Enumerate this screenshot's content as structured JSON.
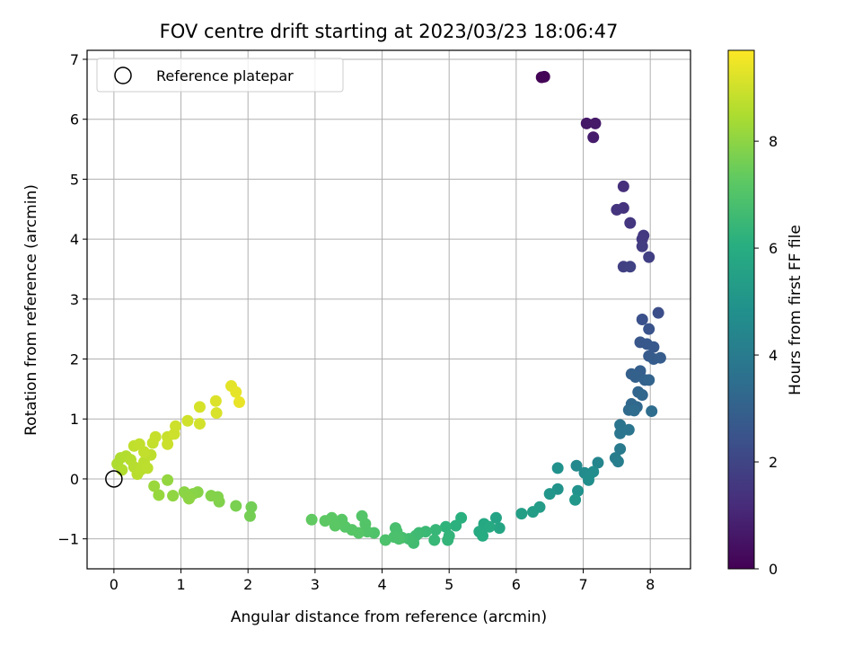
{
  "chart_data": {
    "type": "scatter",
    "title": "FOV centre drift starting at 2023/03/23 18:06:47",
    "xlabel": "Angular distance from reference (arcmin)",
    "ylabel": "Rotation from reference (arcmin)",
    "xlim": [
      -0.4,
      8.6
    ],
    "ylim": [
      -1.5,
      7.15
    ],
    "xticks": [
      0,
      1,
      2,
      3,
      4,
      5,
      6,
      7,
      8
    ],
    "yticks": [
      -1,
      0,
      1,
      2,
      3,
      4,
      5,
      6,
      7
    ],
    "grid": true,
    "colormap": "viridis",
    "legend": {
      "label": "Reference platepar",
      "placement": "top-left"
    },
    "reference_point": {
      "x": 0,
      "y": 0
    },
    "colorbar": {
      "label": "Hours from first FF file",
      "min": 0,
      "max": 9.7,
      "ticks": [
        0,
        2,
        4,
        6,
        8
      ]
    },
    "points": [
      {
        "x": 6.38,
        "y": 6.7,
        "c": 0.05
      },
      {
        "x": 6.42,
        "y": 6.71,
        "c": 0.1
      },
      {
        "x": 7.05,
        "y": 5.93,
        "c": 0.6
      },
      {
        "x": 7.18,
        "y": 5.93,
        "c": 0.65
      },
      {
        "x": 7.15,
        "y": 5.7,
        "c": 0.75
      },
      {
        "x": 7.6,
        "y": 4.88,
        "c": 1.3
      },
      {
        "x": 7.6,
        "y": 4.52,
        "c": 1.4
      },
      {
        "x": 7.5,
        "y": 4.49,
        "c": 1.45
      },
      {
        "x": 7.7,
        "y": 4.27,
        "c": 1.5
      },
      {
        "x": 7.9,
        "y": 4.06,
        "c": 1.6
      },
      {
        "x": 7.88,
        "y": 4.0,
        "c": 1.65
      },
      {
        "x": 7.88,
        "y": 3.88,
        "c": 1.7
      },
      {
        "x": 7.98,
        "y": 3.7,
        "c": 1.8
      },
      {
        "x": 7.6,
        "y": 3.54,
        "c": 1.85
      },
      {
        "x": 7.7,
        "y": 3.54,
        "c": 1.9
      },
      {
        "x": 8.12,
        "y": 2.77,
        "c": 2.3
      },
      {
        "x": 7.88,
        "y": 2.66,
        "c": 2.4
      },
      {
        "x": 7.98,
        "y": 2.5,
        "c": 2.5
      },
      {
        "x": 7.85,
        "y": 2.28,
        "c": 2.6
      },
      {
        "x": 7.95,
        "y": 2.25,
        "c": 2.65
      },
      {
        "x": 8.05,
        "y": 2.2,
        "c": 2.7
      },
      {
        "x": 7.98,
        "y": 2.05,
        "c": 2.75
      },
      {
        "x": 8.05,
        "y": 2.0,
        "c": 2.8
      },
      {
        "x": 8.15,
        "y": 2.02,
        "c": 2.85
      },
      {
        "x": 7.85,
        "y": 1.8,
        "c": 2.9
      },
      {
        "x": 7.72,
        "y": 1.75,
        "c": 2.95
      },
      {
        "x": 7.78,
        "y": 1.7,
        "c": 3.0
      },
      {
        "x": 7.92,
        "y": 1.65,
        "c": 3.05
      },
      {
        "x": 7.98,
        "y": 1.65,
        "c": 3.1
      },
      {
        "x": 7.82,
        "y": 1.45,
        "c": 3.15
      },
      {
        "x": 7.88,
        "y": 1.4,
        "c": 3.2
      },
      {
        "x": 7.72,
        "y": 1.25,
        "c": 3.25
      },
      {
        "x": 7.8,
        "y": 1.2,
        "c": 3.3
      },
      {
        "x": 7.68,
        "y": 1.15,
        "c": 3.35
      },
      {
        "x": 7.76,
        "y": 1.14,
        "c": 3.4
      },
      {
        "x": 8.02,
        "y": 1.13,
        "c": 3.45
      },
      {
        "x": 7.55,
        "y": 0.9,
        "c": 3.7
      },
      {
        "x": 7.68,
        "y": 0.82,
        "c": 3.75
      },
      {
        "x": 7.55,
        "y": 0.76,
        "c": 3.8
      },
      {
        "x": 7.55,
        "y": 0.5,
        "c": 3.95
      },
      {
        "x": 7.48,
        "y": 0.35,
        "c": 4.05
      },
      {
        "x": 7.52,
        "y": 0.29,
        "c": 4.1
      },
      {
        "x": 7.22,
        "y": 0.27,
        "c": 4.4
      },
      {
        "x": 6.9,
        "y": 0.22,
        "c": 4.55
      },
      {
        "x": 7.02,
        "y": 0.1,
        "c": 4.6
      },
      {
        "x": 7.1,
        "y": 0.08,
        "c": 4.65
      },
      {
        "x": 7.15,
        "y": 0.12,
        "c": 4.7
      },
      {
        "x": 7.08,
        "y": -0.02,
        "c": 4.75
      },
      {
        "x": 6.62,
        "y": 0.18,
        "c": 4.85
      },
      {
        "x": 6.92,
        "y": -0.2,
        "c": 4.9
      },
      {
        "x": 6.62,
        "y": -0.17,
        "c": 4.95
      },
      {
        "x": 6.5,
        "y": -0.25,
        "c": 5.05
      },
      {
        "x": 6.88,
        "y": -0.35,
        "c": 5.1
      },
      {
        "x": 6.35,
        "y": -0.47,
        "c": 5.3
      },
      {
        "x": 6.25,
        "y": -0.55,
        "c": 5.35
      },
      {
        "x": 6.08,
        "y": -0.58,
        "c": 5.45
      },
      {
        "x": 5.7,
        "y": -0.65,
        "c": 5.6
      },
      {
        "x": 5.75,
        "y": -0.82,
        "c": 5.7
      },
      {
        "x": 5.52,
        "y": -0.75,
        "c": 5.8
      },
      {
        "x": 5.6,
        "y": -0.8,
        "c": 5.85
      },
      {
        "x": 5.45,
        "y": -0.88,
        "c": 5.9
      },
      {
        "x": 5.5,
        "y": -0.95,
        "c": 5.95
      },
      {
        "x": 5.18,
        "y": -0.65,
        "c": 6.1
      },
      {
        "x": 5.1,
        "y": -0.78,
        "c": 6.15
      },
      {
        "x": 4.95,
        "y": -0.8,
        "c": 6.25
      },
      {
        "x": 5.0,
        "y": -0.95,
        "c": 6.3
      },
      {
        "x": 4.98,
        "y": -1.02,
        "c": 6.35
      },
      {
        "x": 4.8,
        "y": -0.85,
        "c": 6.4
      },
      {
        "x": 4.78,
        "y": -1.02,
        "c": 6.45
      },
      {
        "x": 4.65,
        "y": -0.88,
        "c": 6.5
      },
      {
        "x": 4.55,
        "y": -0.9,
        "c": 6.55
      },
      {
        "x": 4.5,
        "y": -0.95,
        "c": 6.6
      },
      {
        "x": 4.47,
        "y": -1.07,
        "c": 6.65
      },
      {
        "x": 4.4,
        "y": -1.0,
        "c": 6.7
      },
      {
        "x": 4.3,
        "y": -0.98,
        "c": 6.75
      },
      {
        "x": 4.2,
        "y": -0.82,
        "c": 6.8
      },
      {
        "x": 4.22,
        "y": -0.88,
        "c": 6.82
      },
      {
        "x": 4.18,
        "y": -0.97,
        "c": 6.85
      },
      {
        "x": 4.25,
        "y": -1.0,
        "c": 6.87
      },
      {
        "x": 4.05,
        "y": -1.02,
        "c": 6.9
      },
      {
        "x": 3.88,
        "y": -0.9,
        "c": 6.95
      },
      {
        "x": 3.78,
        "y": -0.88,
        "c": 7.0
      },
      {
        "x": 3.75,
        "y": -0.75,
        "c": 7.02
      },
      {
        "x": 3.7,
        "y": -0.62,
        "c": 7.05
      },
      {
        "x": 3.65,
        "y": -0.9,
        "c": 7.08
      },
      {
        "x": 3.55,
        "y": -0.85,
        "c": 7.1
      },
      {
        "x": 3.45,
        "y": -0.8,
        "c": 7.12
      },
      {
        "x": 3.4,
        "y": -0.68,
        "c": 7.15
      },
      {
        "x": 3.3,
        "y": -0.78,
        "c": 7.18
      },
      {
        "x": 3.25,
        "y": -0.65,
        "c": 7.2
      },
      {
        "x": 3.15,
        "y": -0.7,
        "c": 7.25
      },
      {
        "x": 2.95,
        "y": -0.68,
        "c": 7.3
      },
      {
        "x": 2.05,
        "y": -0.47,
        "c": 7.6
      },
      {
        "x": 2.03,
        "y": -0.62,
        "c": 7.62
      },
      {
        "x": 1.82,
        "y": -0.45,
        "c": 7.7
      },
      {
        "x": 1.57,
        "y": -0.38,
        "c": 7.8
      },
      {
        "x": 1.55,
        "y": -0.3,
        "c": 7.82
      },
      {
        "x": 1.45,
        "y": -0.28,
        "c": 7.85
      },
      {
        "x": 1.25,
        "y": -0.22,
        "c": 7.9
      },
      {
        "x": 1.18,
        "y": -0.25,
        "c": 7.92
      },
      {
        "x": 1.1,
        "y": -0.28,
        "c": 7.95
      },
      {
        "x": 1.05,
        "y": -0.22,
        "c": 7.97
      },
      {
        "x": 1.12,
        "y": -0.33,
        "c": 8.0
      },
      {
        "x": 0.88,
        "y": -0.28,
        "c": 8.05
      },
      {
        "x": 0.8,
        "y": -0.02,
        "c": 8.1
      },
      {
        "x": 0.67,
        "y": -0.27,
        "c": 8.15
      },
      {
        "x": 0.6,
        "y": -0.12,
        "c": 8.2
      },
      {
        "x": 0.05,
        "y": 0.25,
        "c": 8.5
      },
      {
        "x": 0.1,
        "y": 0.35,
        "c": 8.52
      },
      {
        "x": 0.12,
        "y": 0.15,
        "c": 8.55
      },
      {
        "x": 0.18,
        "y": 0.38,
        "c": 8.57
      },
      {
        "x": 0.25,
        "y": 0.32,
        "c": 8.6
      },
      {
        "x": 0.3,
        "y": 0.2,
        "c": 8.62
      },
      {
        "x": 0.35,
        "y": 0.08,
        "c": 8.65
      },
      {
        "x": 0.4,
        "y": 0.15,
        "c": 8.67
      },
      {
        "x": 0.45,
        "y": 0.28,
        "c": 8.7
      },
      {
        "x": 0.5,
        "y": 0.18,
        "c": 8.72
      },
      {
        "x": 0.55,
        "y": 0.4,
        "c": 8.75
      },
      {
        "x": 0.3,
        "y": 0.55,
        "c": 8.78
      },
      {
        "x": 0.38,
        "y": 0.58,
        "c": 8.8
      },
      {
        "x": 0.45,
        "y": 0.45,
        "c": 8.82
      },
      {
        "x": 0.58,
        "y": 0.6,
        "c": 8.85
      },
      {
        "x": 0.62,
        "y": 0.7,
        "c": 8.87
      },
      {
        "x": 0.8,
        "y": 0.7,
        "c": 8.9
      },
      {
        "x": 0.8,
        "y": 0.58,
        "c": 8.92
      },
      {
        "x": 0.9,
        "y": 0.75,
        "c": 8.95
      },
      {
        "x": 0.92,
        "y": 0.88,
        "c": 8.97
      },
      {
        "x": 1.1,
        "y": 0.97,
        "c": 9.0
      },
      {
        "x": 1.28,
        "y": 0.92,
        "c": 9.05
      },
      {
        "x": 1.28,
        "y": 1.2,
        "c": 9.1
      },
      {
        "x": 1.53,
        "y": 1.1,
        "c": 9.15
      },
      {
        "x": 1.52,
        "y": 1.3,
        "c": 9.2
      },
      {
        "x": 1.75,
        "y": 1.55,
        "c": 9.3
      },
      {
        "x": 1.82,
        "y": 1.45,
        "c": 9.35
      },
      {
        "x": 1.87,
        "y": 1.28,
        "c": 9.4
      }
    ]
  }
}
